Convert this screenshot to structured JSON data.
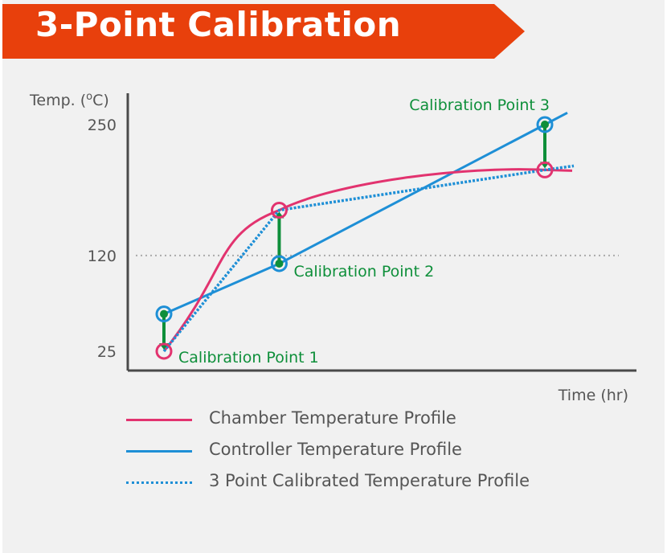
{
  "title": "3-Point Calibration",
  "colors": {
    "banner": "#e8400c",
    "chamber": "#e2336f",
    "controller": "#1e8fd6",
    "calibrated": "#1e8fd6",
    "arrow": "#0e8f3a",
    "axis": "#4a4a4a",
    "reference_line": "#aaaaaa"
  },
  "chart_data": {
    "type": "line",
    "xlabel": "Time (hr)",
    "ylabel": "Temp. (°C)",
    "y_ticks": [
      {
        "value": 250,
        "label": "250"
      },
      {
        "value": 120,
        "label": "120"
      },
      {
        "value": 25,
        "label": "25"
      }
    ],
    "reference_lines": [
      {
        "y": 120,
        "style": "dotted"
      }
    ],
    "series": [
      {
        "name": "Chamber Temperature Profile",
        "style": "solid",
        "points": [
          [
            1.0,
            25
          ],
          [
            5.6,
            165
          ],
          [
            16.2,
            205
          ]
        ]
      },
      {
        "name": "Controller Temperature Profile",
        "style": "solid",
        "points": [
          [
            1.0,
            62
          ],
          [
            5.6,
            112
          ],
          [
            16.2,
            250
          ]
        ]
      },
      {
        "name": "3 Point Calibrated Temperature Profile",
        "style": "dotted",
        "points": [
          [
            1.0,
            25
          ],
          [
            5.6,
            165
          ],
          [
            16.2,
            205
          ]
        ]
      }
    ],
    "annotations": [
      {
        "label": "Calibration Point 1",
        "x": 1.0,
        "y_from": 62,
        "y_to": 25
      },
      {
        "label": "Calibration Point 2",
        "x": 5.6,
        "y_from": 112,
        "y_to": 165
      },
      {
        "label": "Calibration Point 3",
        "x": 16.2,
        "y_from": 250,
        "y_to": 205
      }
    ],
    "legend_position": "bottom"
  }
}
